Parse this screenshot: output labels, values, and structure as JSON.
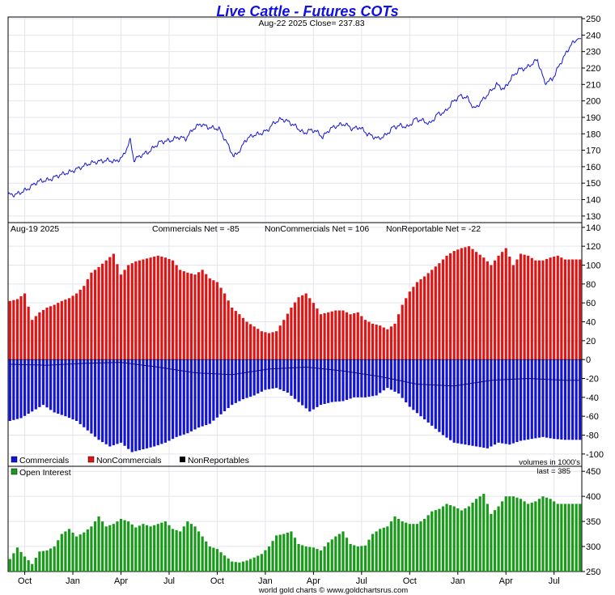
{
  "title": "Live Cattle - Futures COTs",
  "price_header": "Aug-22  2025   Close= 237.83",
  "cot_date": "Aug-19  2025",
  "net_labels": {
    "commercials": "Commercials Net = -85",
    "noncommercials": "NonCommercials Net = 106",
    "nonreportable": "NonReportable Net = -22"
  },
  "legend": {
    "commercials": "Commercials",
    "noncommercials": "NonCommercials",
    "nonreportables": "NonReportables",
    "open_interest": "Open Interest"
  },
  "volumes_note": "volumes in 1000's",
  "oi_last": "last = 385",
  "footer": "world gold charts © www.goldchartsrus.com",
  "colors": {
    "title": "#1010e0",
    "price_line": "#1414d4",
    "commercials": "#1414d4",
    "noncommercials": "#e01414",
    "nonreportables": "#000000",
    "open_interest": "#1a9a1a",
    "grid": "#e4e4ee"
  },
  "chart_data": [
    {
      "type": "line",
      "name": "price",
      "ylim": [
        126,
        251
      ],
      "yticks": [
        130,
        140,
        150,
        160,
        170,
        180,
        190,
        200,
        210,
        220,
        230,
        240,
        250
      ],
      "x_tick_labels": [
        "Oct",
        "Jan",
        "Apr",
        "Jul",
        "Oct",
        "Jan",
        "Apr",
        "Jul",
        "Oct",
        "Jan",
        "Apr",
        "Jul"
      ],
      "x_tick_weeks": [
        4,
        17,
        30,
        43,
        56,
        69,
        82,
        95,
        108,
        121,
        134,
        147
      ],
      "anchors_week": [
        0,
        2,
        5,
        8,
        11,
        14,
        17,
        20,
        22,
        24,
        27,
        29,
        31,
        33,
        34,
        36,
        38,
        41,
        44,
        46,
        48,
        50,
        52,
        54,
        57,
        59,
        61,
        63,
        64,
        66,
        68,
        70,
        72,
        74,
        76,
        78,
        80,
        81,
        83,
        85,
        87,
        89,
        91,
        93,
        95,
        97,
        100,
        102,
        104,
        106,
        108,
        110,
        112,
        114,
        116,
        118,
        120,
        122,
        124,
        126,
        128,
        130,
        132,
        134,
        136,
        138,
        140,
        143,
        145,
        147,
        149,
        151,
        152,
        154
      ],
      "anchors_price": [
        143,
        143,
        146,
        151,
        152,
        155,
        157,
        160,
        162,
        163,
        164,
        163,
        166,
        176,
        164,
        167,
        169,
        175,
        176,
        178,
        177,
        183,
        186,
        184,
        183,
        175,
        166,
        171,
        176,
        179,
        180,
        182,
        187,
        189,
        187,
        184,
        180,
        182,
        182,
        178,
        183,
        185,
        186,
        183,
        184,
        180,
        177,
        179,
        184,
        185,
        184,
        189,
        188,
        186,
        192,
        193,
        199,
        203,
        202,
        195,
        200,
        205,
        210,
        207,
        214,
        219,
        220,
        225,
        211,
        213,
        222,
        230,
        234,
        237.8
      ]
    },
    {
      "type": "bar",
      "name": "cot_net",
      "ylim": [
        -113,
        145
      ],
      "yticks": [
        -100,
        -80,
        -60,
        -40,
        -20,
        0,
        20,
        40,
        60,
        80,
        100,
        120,
        140
      ],
      "noncommercials_anchor_weeks": [
        0,
        2,
        4,
        6,
        8,
        10,
        12,
        14,
        16,
        18,
        20,
        22,
        24,
        26,
        28,
        30,
        32,
        34,
        36,
        38,
        40,
        42,
        44,
        46,
        48,
        50,
        52,
        54,
        56,
        58,
        60,
        62,
        64,
        66,
        68,
        70,
        72,
        74,
        76,
        78,
        80,
        82,
        84,
        86,
        88,
        90,
        92,
        94,
        96,
        98,
        100,
        102,
        104,
        106,
        108,
        110,
        112,
        114,
        116,
        118,
        120,
        122,
        124,
        126,
        128,
        130,
        132,
        134,
        136,
        138,
        140,
        142,
        144,
        146,
        148,
        150,
        152,
        154
      ],
      "noncommercials_anchor_values": [
        62,
        64,
        70,
        42,
        50,
        55,
        58,
        62,
        65,
        70,
        78,
        92,
        98,
        105,
        112,
        90,
        100,
        104,
        106,
        108,
        110,
        108,
        105,
        95,
        92,
        90,
        95,
        86,
        82,
        70,
        55,
        48,
        40,
        35,
        30,
        28,
        30,
        42,
        55,
        66,
        70,
        60,
        48,
        50,
        52,
        52,
        48,
        50,
        42,
        38,
        36,
        32,
        38,
        58,
        72,
        82,
        88,
        95,
        102,
        110,
        115,
        118,
        120,
        114,
        108,
        100,
        110,
        118,
        100,
        112,
        110,
        105,
        105,
        108,
        110,
        106,
        106,
        106
      ],
      "commercials_anchor_weeks": [
        0,
        3,
        6,
        9,
        12,
        15,
        18,
        21,
        24,
        27,
        30,
        33,
        36,
        39,
        42,
        45,
        48,
        51,
        54,
        57,
        60,
        63,
        66,
        69,
        72,
        75,
        78,
        81,
        84,
        87,
        90,
        93,
        96,
        99,
        102,
        105,
        108,
        111,
        114,
        117,
        120,
        123,
        126,
        129,
        132,
        135,
        138,
        141,
        144,
        147,
        150,
        154
      ],
      "commercials_anchor_values": [
        -65,
        -62,
        -55,
        -48,
        -56,
        -60,
        -65,
        -75,
        -85,
        -92,
        -88,
        -98,
        -95,
        -92,
        -88,
        -82,
        -78,
        -72,
        -68,
        -58,
        -48,
        -42,
        -38,
        -32,
        -30,
        -35,
        -45,
        -55,
        -48,
        -45,
        -44,
        -40,
        -40,
        -38,
        -30,
        -36,
        -50,
        -60,
        -70,
        -80,
        -88,
        -90,
        -92,
        -94,
        -88,
        -90,
        -86,
        -84,
        -82,
        -84,
        -85,
        -85
      ],
      "nonreportables_anchor_weeks": [
        0,
        10,
        20,
        30,
        40,
        50,
        60,
        70,
        80,
        90,
        95,
        100,
        105,
        110,
        120,
        130,
        140,
        150,
        154
      ],
      "nonreportables_anchor_values": [
        -5,
        -6,
        -4,
        -3,
        -8,
        -14,
        -16,
        -10,
        -8,
        -12,
        -15,
        -18,
        -22,
        -26,
        -28,
        -22,
        -20,
        -22,
        -22
      ]
    },
    {
      "type": "bar",
      "name": "open_interest",
      "ylim": [
        250,
        460
      ],
      "yticks": [
        250,
        300,
        350,
        400,
        450
      ],
      "anchors_week": [
        0,
        2,
        4,
        6,
        8,
        10,
        12,
        14,
        16,
        18,
        20,
        22,
        24,
        26,
        28,
        30,
        32,
        34,
        36,
        38,
        40,
        42,
        44,
        46,
        48,
        50,
        52,
        54,
        56,
        58,
        60,
        62,
        64,
        66,
        68,
        70,
        72,
        74,
        76,
        78,
        80,
        82,
        84,
        86,
        88,
        90,
        92,
        94,
        96,
        98,
        100,
        102,
        104,
        106,
        108,
        110,
        112,
        114,
        116,
        118,
        120,
        122,
        124,
        126,
        128,
        130,
        132,
        134,
        136,
        138,
        140,
        142,
        144,
        146,
        148,
        150,
        152,
        154
      ],
      "anchors_value": [
        275,
        298,
        280,
        265,
        290,
        292,
        300,
        325,
        335,
        320,
        328,
        340,
        360,
        340,
        345,
        355,
        350,
        338,
        345,
        340,
        345,
        350,
        335,
        330,
        350,
        340,
        320,
        300,
        295,
        282,
        270,
        268,
        272,
        278,
        285,
        300,
        322,
        325,
        330,
        305,
        300,
        298,
        292,
        308,
        320,
        330,
        305,
        300,
        302,
        325,
        335,
        340,
        360,
        350,
        345,
        345,
        355,
        370,
        375,
        385,
        380,
        372,
        380,
        395,
        405,
        365,
        380,
        400,
        400,
        395,
        385,
        390,
        400,
        395,
        385,
        385,
        385,
        385
      ]
    }
  ]
}
